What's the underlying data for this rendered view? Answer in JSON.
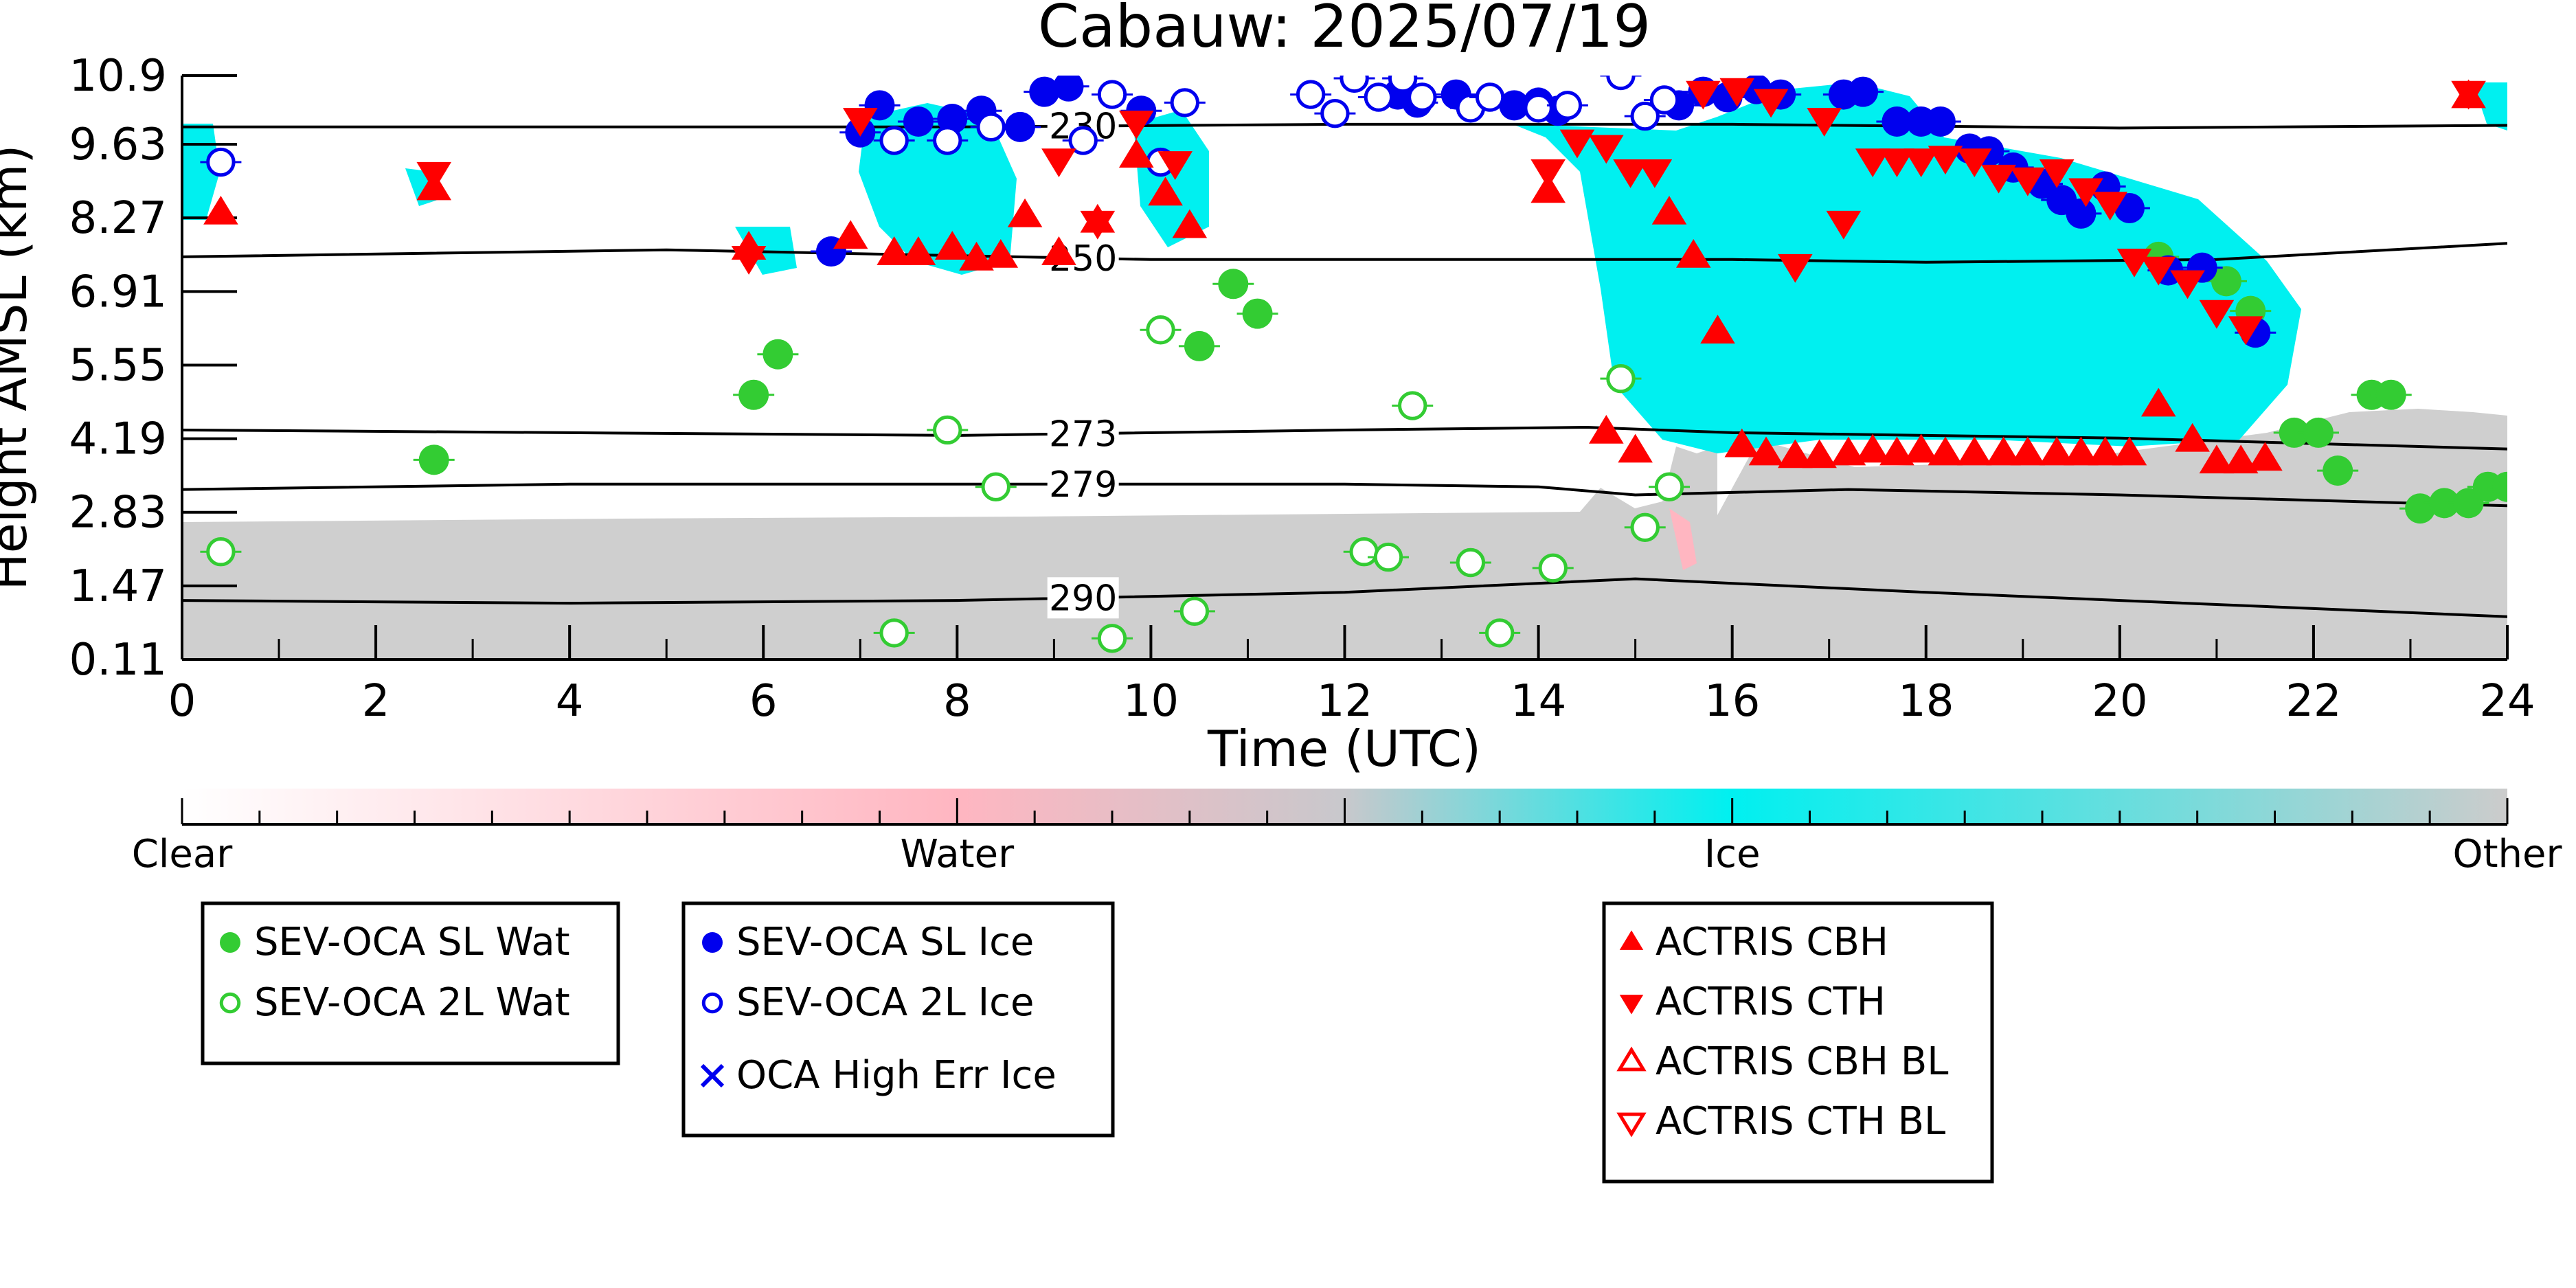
{
  "chart_data": {
    "type": "scatter",
    "title": "Cabauw: 2025/07/19",
    "xlabel": "Time (UTC)",
    "ylabel": "Height AMSL (km)",
    "xlim": [
      0,
      24
    ],
    "ylim": [
      0.11,
      10.9
    ],
    "x_ticks": [
      "0",
      "2",
      "4",
      "6",
      "8",
      "10",
      "12",
      "14",
      "16",
      "18",
      "20",
      "22",
      "24"
    ],
    "y_ticks": [
      "0.11",
      "1.47",
      "2.83",
      "4.19",
      "5.55",
      "6.91",
      "8.27",
      "9.63",
      "10.9"
    ],
    "grid": false,
    "colorbar": {
      "labels": [
        "Clear",
        "Water",
        "Ice",
        "Other"
      ],
      "colors": [
        "#ffffff",
        "#ffb6c1",
        "#00f0f0",
        "#cccccc"
      ]
    },
    "isotherms": [
      {
        "label": "230",
        "points": [
          [
            0,
            9.95
          ],
          [
            4,
            9.95
          ],
          [
            8,
            9.95
          ],
          [
            12,
            10.0
          ],
          [
            16,
            10.0
          ],
          [
            20,
            9.93
          ],
          [
            24,
            9.98
          ]
        ]
      },
      {
        "label": "250",
        "points": [
          [
            0,
            7.55
          ],
          [
            5,
            7.68
          ],
          [
            10,
            7.5
          ],
          [
            14,
            7.5
          ],
          [
            16,
            7.5
          ],
          [
            18,
            7.45
          ],
          [
            21,
            7.5
          ],
          [
            24,
            7.8
          ]
        ]
      },
      {
        "label": "273",
        "points": [
          [
            0,
            4.35
          ],
          [
            4,
            4.3
          ],
          [
            8,
            4.25
          ],
          [
            12,
            4.35
          ],
          [
            14.5,
            4.4
          ],
          [
            16,
            4.3
          ],
          [
            20,
            4.2
          ],
          [
            24,
            4.0
          ]
        ]
      },
      {
        "label": "279",
        "points": [
          [
            0,
            3.25
          ],
          [
            4,
            3.35
          ],
          [
            8,
            3.35
          ],
          [
            12,
            3.35
          ],
          [
            14,
            3.3
          ],
          [
            15,
            3.15
          ],
          [
            17.2,
            3.25
          ],
          [
            20,
            3.15
          ],
          [
            24,
            2.95
          ]
        ]
      },
      {
        "label": "290",
        "points": [
          [
            0,
            1.2
          ],
          [
            4,
            1.15
          ],
          [
            8,
            1.2
          ],
          [
            12,
            1.35
          ],
          [
            15,
            1.6
          ],
          [
            18,
            1.35
          ],
          [
            22,
            1.05
          ],
          [
            24,
            0.9
          ]
        ]
      }
    ],
    "series": [
      {
        "name": "SEV-OCA SL Wat",
        "color": "#33cc33",
        "marker": "filled-circle",
        "points": [
          [
            2.6,
            3.8
          ],
          [
            5.9,
            5.0
          ],
          [
            6.15,
            5.75
          ],
          [
            10.5,
            5.9
          ],
          [
            10.85,
            7.05
          ],
          [
            11.1,
            6.5
          ],
          [
            20.4,
            7.55
          ],
          [
            21.1,
            7.1
          ],
          [
            21.35,
            6.55
          ],
          [
            21.8,
            4.3
          ],
          [
            22.05,
            4.3
          ],
          [
            22.25,
            3.6
          ],
          [
            22.6,
            5.0
          ],
          [
            22.8,
            5.0
          ],
          [
            23.1,
            2.9
          ],
          [
            23.35,
            3.0
          ],
          [
            23.6,
            3.0
          ],
          [
            23.8,
            3.3
          ],
          [
            24.0,
            3.3
          ]
        ]
      },
      {
        "name": "SEV-OCA 2L Wat",
        "color": "#33cc33",
        "marker": "open-circle",
        "points": [
          [
            0.4,
            2.1
          ],
          [
            7.35,
            0.6
          ],
          [
            7.9,
            4.35
          ],
          [
            8.4,
            3.3
          ],
          [
            9.6,
            0.5
          ],
          [
            10.1,
            6.2
          ],
          [
            10.45,
            1.0
          ],
          [
            12.2,
            2.1
          ],
          [
            12.45,
            2.0
          ],
          [
            12.7,
            4.8
          ],
          [
            13.3,
            1.9
          ],
          [
            13.6,
            0.6
          ],
          [
            14.15,
            1.8
          ],
          [
            14.85,
            5.3
          ],
          [
            15.1,
            2.55
          ],
          [
            15.35,
            3.3
          ]
        ]
      },
      {
        "name": "SEV-OCA SL Ice",
        "color": "#0000ee",
        "marker": "filled-circle",
        "points": [
          [
            6.7,
            7.65
          ],
          [
            7.0,
            9.85
          ],
          [
            7.2,
            10.35
          ],
          [
            7.6,
            10.05
          ],
          [
            7.95,
            10.1
          ],
          [
            8.25,
            10.25
          ],
          [
            8.65,
            9.95
          ],
          [
            8.9,
            10.6
          ],
          [
            9.15,
            10.7
          ],
          [
            9.9,
            10.25
          ],
          [
            12.55,
            10.55
          ],
          [
            12.75,
            10.4
          ],
          [
            13.15,
            10.55
          ],
          [
            13.75,
            10.35
          ],
          [
            14.0,
            10.4
          ],
          [
            14.2,
            10.25
          ],
          [
            15.45,
            10.35
          ],
          [
            15.7,
            10.6
          ],
          [
            15.95,
            10.5
          ],
          [
            16.25,
            10.65
          ],
          [
            16.5,
            10.55
          ],
          [
            17.15,
            10.55
          ],
          [
            17.35,
            10.6
          ],
          [
            17.7,
            10.05
          ],
          [
            17.95,
            10.05
          ],
          [
            18.15,
            10.05
          ],
          [
            18.45,
            9.55
          ],
          [
            18.65,
            9.5
          ],
          [
            18.9,
            9.2
          ],
          [
            19.2,
            8.9
          ],
          [
            19.4,
            8.6
          ],
          [
            19.6,
            8.35
          ],
          [
            19.85,
            8.85
          ],
          [
            20.1,
            8.45
          ],
          [
            20.5,
            7.3
          ],
          [
            20.85,
            7.35
          ],
          [
            21.4,
            6.15
          ]
        ]
      },
      {
        "name": "SEV-OCA 2L Ice",
        "color": "#0000ee",
        "marker": "open-circle",
        "points": [
          [
            0.4,
            9.3
          ],
          [
            7.35,
            9.7
          ],
          [
            7.9,
            9.7
          ],
          [
            8.35,
            9.95
          ],
          [
            9.3,
            9.7
          ],
          [
            9.6,
            10.55
          ],
          [
            10.1,
            9.3
          ],
          [
            10.35,
            10.4
          ],
          [
            11.65,
            10.55
          ],
          [
            11.9,
            10.2
          ],
          [
            12.1,
            10.85
          ],
          [
            12.35,
            10.5
          ],
          [
            12.6,
            10.85
          ],
          [
            12.8,
            10.5
          ],
          [
            13.3,
            10.3
          ],
          [
            13.5,
            10.5
          ],
          [
            14.0,
            10.3
          ],
          [
            14.3,
            10.35
          ],
          [
            14.85,
            10.9
          ],
          [
            15.1,
            10.15
          ],
          [
            15.3,
            10.45
          ]
        ]
      },
      {
        "name": "OCA High Err Ice",
        "color": "#0000ee",
        "marker": "x",
        "points": []
      },
      {
        "name": "ACTRIS CBH",
        "color": "#ff0000",
        "marker": "triangle-up",
        "points": [
          [
            0.4,
            8.35
          ],
          [
            2.6,
            8.8
          ],
          [
            5.85,
            7.7
          ],
          [
            6.9,
            7.9
          ],
          [
            7.35,
            7.6
          ],
          [
            7.6,
            7.6
          ],
          [
            7.95,
            7.7
          ],
          [
            8.2,
            7.5
          ],
          [
            8.45,
            7.55
          ],
          [
            8.7,
            8.3
          ],
          [
            9.05,
            7.6
          ],
          [
            9.45,
            8.2
          ],
          [
            9.85,
            9.4
          ],
          [
            10.15,
            8.7
          ],
          [
            10.4,
            8.1
          ],
          [
            14.1,
            8.75
          ],
          [
            14.7,
            4.3
          ],
          [
            15.0,
            3.95
          ],
          [
            15.35,
            8.35
          ],
          [
            15.6,
            7.55
          ],
          [
            15.85,
            6.15
          ],
          [
            16.1,
            4.05
          ],
          [
            16.35,
            3.9
          ],
          [
            16.65,
            3.85
          ],
          [
            16.9,
            3.85
          ],
          [
            17.2,
            3.9
          ],
          [
            17.45,
            3.95
          ],
          [
            17.7,
            3.9
          ],
          [
            17.95,
            3.95
          ],
          [
            18.2,
            3.9
          ],
          [
            18.5,
            3.9
          ],
          [
            18.8,
            3.9
          ],
          [
            19.05,
            3.9
          ],
          [
            19.35,
            3.9
          ],
          [
            19.6,
            3.9
          ],
          [
            19.85,
            3.9
          ],
          [
            20.1,
            3.9
          ],
          [
            20.4,
            4.8
          ],
          [
            20.75,
            4.15
          ],
          [
            21.0,
            3.75
          ],
          [
            21.25,
            3.75
          ],
          [
            21.5,
            3.8
          ],
          [
            23.6,
            10.5
          ]
        ]
      },
      {
        "name": "ACTRIS CTH",
        "color": "#ff0000",
        "marker": "triangle-down",
        "points": [
          [
            2.6,
            9.1
          ],
          [
            5.85,
            7.55
          ],
          [
            7.0,
            10.1
          ],
          [
            9.05,
            9.35
          ],
          [
            9.45,
            8.2
          ],
          [
            9.85,
            10.05
          ],
          [
            10.25,
            9.3
          ],
          [
            14.1,
            9.15
          ],
          [
            14.4,
            9.7
          ],
          [
            14.7,
            9.6
          ],
          [
            14.95,
            9.15
          ],
          [
            15.2,
            9.15
          ],
          [
            15.7,
            10.6
          ],
          [
            16.05,
            10.65
          ],
          [
            16.4,
            10.45
          ],
          [
            16.65,
            7.4
          ],
          [
            16.95,
            10.1
          ],
          [
            17.15,
            8.2
          ],
          [
            17.45,
            9.35
          ],
          [
            17.7,
            9.35
          ],
          [
            17.95,
            9.35
          ],
          [
            18.2,
            9.4
          ],
          [
            18.5,
            9.35
          ],
          [
            18.75,
            9.05
          ],
          [
            19.05,
            9.0
          ],
          [
            19.35,
            9.15
          ],
          [
            19.65,
            8.8
          ],
          [
            19.9,
            8.55
          ],
          [
            20.15,
            7.5
          ],
          [
            20.4,
            7.35
          ],
          [
            20.7,
            7.1
          ],
          [
            21.0,
            6.55
          ],
          [
            21.3,
            6.25
          ],
          [
            23.6,
            10.6
          ]
        ]
      },
      {
        "name": "ACTRIS CBH BL",
        "color": "#ff0000",
        "marker": "open-triangle-up",
        "points": []
      },
      {
        "name": "ACTRIS CTH BL",
        "color": "#ff0000",
        "marker": "open-triangle-down",
        "points": []
      }
    ]
  }
}
